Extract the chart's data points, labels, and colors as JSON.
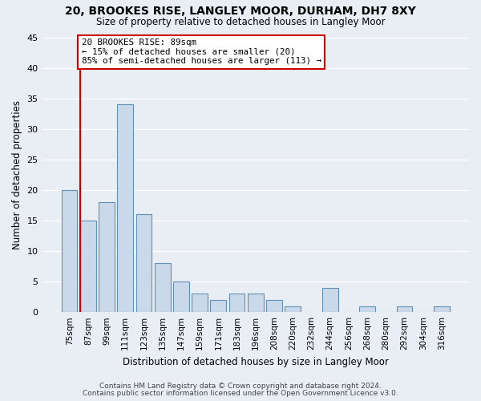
{
  "title1": "20, BROOKES RISE, LANGLEY MOOR, DURHAM, DH7 8XY",
  "title2": "Size of property relative to detached houses in Langley Moor",
  "xlabel": "Distribution of detached houses by size in Langley Moor",
  "ylabel": "Number of detached properties",
  "bar_labels": [
    "75sqm",
    "87sqm",
    "99sqm",
    "111sqm",
    "123sqm",
    "135sqm",
    "147sqm",
    "159sqm",
    "171sqm",
    "183sqm",
    "196sqm",
    "208sqm",
    "220sqm",
    "232sqm",
    "244sqm",
    "256sqm",
    "268sqm",
    "280sqm",
    "292sqm",
    "304sqm",
    "316sqm"
  ],
  "bar_values": [
    20,
    15,
    18,
    34,
    16,
    8,
    5,
    3,
    2,
    3,
    3,
    2,
    1,
    0,
    4,
    0,
    1,
    0,
    1,
    0,
    1
  ],
  "bar_color": "#c9d9ea",
  "bar_edge_color": "#6090b8",
  "background_color": "#e8eef4",
  "red_line_index": 1,
  "annotation_line1": "20 BROOKES RISE: 89sqm",
  "annotation_line2": "← 15% of detached houses are smaller (20)",
  "annotation_line3": "85% of semi-detached houses are larger (113) →",
  "annotation_box_color": "#ffffff",
  "annotation_box_edge": "#cc0000",
  "footer_text1": "Contains HM Land Registry data © Crown copyright and database right 2024.",
  "footer_text2": "Contains public sector information licensed under the Open Government Licence v3.0.",
  "ylim": [
    0,
    45
  ],
  "yticks": [
    0,
    5,
    10,
    15,
    20,
    25,
    30,
    35,
    40,
    45
  ]
}
